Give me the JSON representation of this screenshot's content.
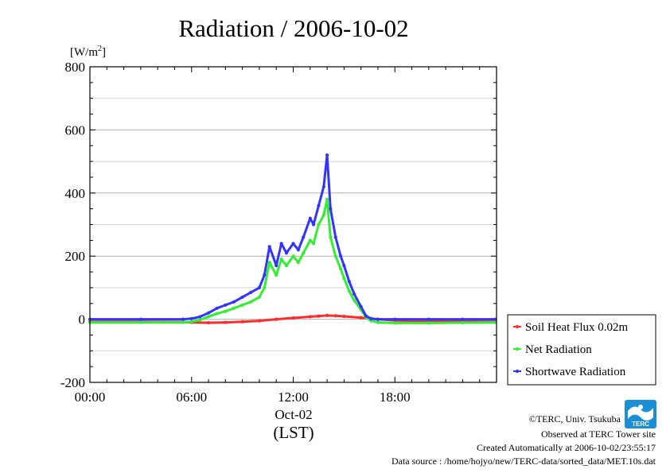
{
  "chart_data": {
    "type": "line",
    "title": "Radiation / 2006-10-02",
    "ylabel_unit": "[W/m",
    "ylabel_unit_sup": "2",
    "ylabel_unit_close": "]",
    "xlabel_date": "Oct-02",
    "xlabel_tz": "(LST)",
    "x_unit": "hour",
    "xlim": [
      0,
      24
    ],
    "ylim": [
      -200,
      800
    ],
    "y_ticks": [
      -200,
      0,
      200,
      400,
      600,
      800
    ],
    "y_tick_labels": [
      "-200",
      "0",
      "200",
      "400",
      "600",
      "800"
    ],
    "x_ticks": [
      0,
      6,
      12,
      18
    ],
    "x_tick_labels": [
      "00:00",
      "06:00",
      "12:00",
      "18:00"
    ],
    "grid": true,
    "legend_position": "right",
    "series": [
      {
        "name": "Soil Heat Flux 0.02m",
        "color": "#ff2a2a",
        "x": [
          0,
          3,
          5.5,
          6,
          7,
          8,
          9,
          10,
          11,
          12,
          13,
          13.5,
          14,
          14.5,
          15,
          16,
          17,
          18,
          20,
          22,
          23.9
        ],
        "y": [
          -8,
          -8,
          -9,
          -10,
          -11,
          -10,
          -8,
          -5,
          0,
          4,
          8,
          10,
          12,
          11,
          9,
          5,
          0,
          -4,
          -6,
          -7,
          -8
        ]
      },
      {
        "name": "Net Radiation",
        "color": "#33ee33",
        "x": [
          0,
          3,
          5.5,
          6,
          6.5,
          7,
          7.5,
          8,
          8.5,
          9,
          9.5,
          10,
          10.3,
          10.6,
          11,
          11.3,
          11.6,
          12,
          12.3,
          12.6,
          13,
          13.2,
          13.5,
          13.8,
          14,
          14.2,
          14.5,
          14.8,
          15,
          15.3,
          15.6,
          16,
          16.3,
          16.6,
          17,
          18,
          20,
          22,
          23.9
        ],
        "y": [
          -10,
          -10,
          -10,
          -8,
          -2,
          8,
          18,
          25,
          35,
          45,
          55,
          70,
          100,
          180,
          140,
          190,
          170,
          200,
          180,
          210,
          250,
          240,
          300,
          330,
          380,
          260,
          200,
          160,
          130,
          90,
          60,
          30,
          5,
          -5,
          -10,
          -12,
          -12,
          -11,
          -10
        ]
      },
      {
        "name": "Shortwave Radiation",
        "color": "#3333ff",
        "x": [
          0,
          3,
          5.5,
          6,
          6.5,
          7,
          7.5,
          8,
          8.5,
          9,
          9.5,
          10,
          10.3,
          10.6,
          11,
          11.3,
          11.6,
          12,
          12.3,
          12.6,
          13,
          13.2,
          13.5,
          13.8,
          14,
          14.2,
          14.5,
          14.8,
          15,
          15.3,
          15.6,
          16,
          16.3,
          16.6,
          17,
          18,
          20,
          22,
          23.9
        ],
        "y": [
          0,
          0,
          0,
          2,
          8,
          20,
          35,
          45,
          55,
          70,
          85,
          100,
          140,
          230,
          170,
          240,
          210,
          240,
          220,
          260,
          320,
          300,
          360,
          420,
          520,
          350,
          260,
          200,
          170,
          120,
          80,
          40,
          10,
          2,
          0,
          0,
          0,
          0,
          0
        ]
      }
    ]
  },
  "credits": {
    "line1": "©TERC, Univ. Tsukuba",
    "line2": "Observed at TERC Tower site",
    "line3": "Created Automatically at 2006-10-02/23:55:17",
    "line4": "Data source : /home/hojyo/new/TERC-data/sorted_data/MET.10s.dat"
  },
  "logo": {
    "text": "TERC",
    "color": "#1a8fd8"
  }
}
